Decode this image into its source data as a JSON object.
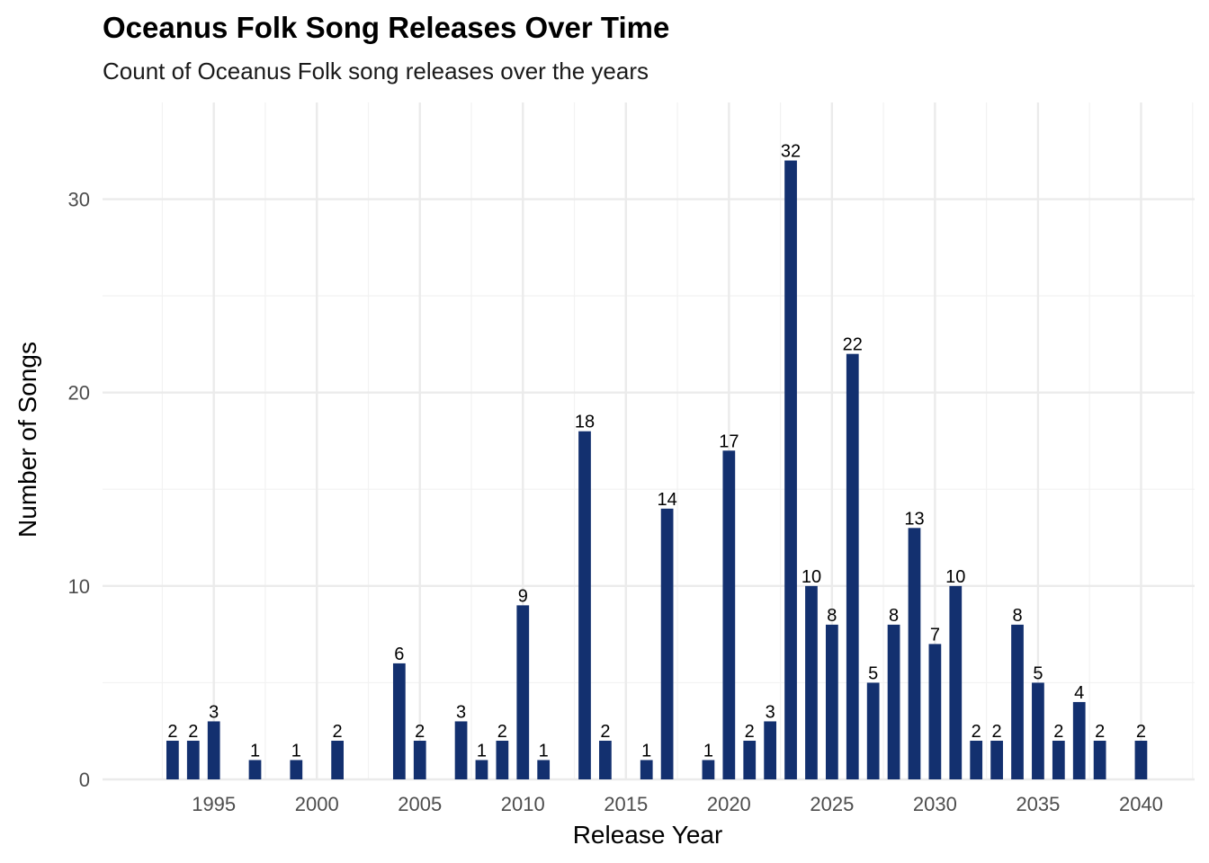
{
  "chart_data": {
    "type": "bar",
    "title": "Oceanus Folk Song Releases Over Time",
    "subtitle": "Count of Oceanus Folk song releases over the years",
    "xlabel": "Release Year",
    "ylabel": "Number of Songs",
    "x": [
      1993,
      1994,
      1995,
      1997,
      1999,
      2001,
      2004,
      2005,
      2007,
      2008,
      2009,
      2010,
      2011,
      2013,
      2014,
      2016,
      2017,
      2019,
      2020,
      2021,
      2022,
      2023,
      2024,
      2025,
      2026,
      2027,
      2028,
      2029,
      2030,
      2031,
      2032,
      2033,
      2034,
      2035,
      2036,
      2037,
      2038,
      2040
    ],
    "values": [
      2,
      2,
      3,
      1,
      1,
      2,
      6,
      2,
      3,
      1,
      2,
      9,
      1,
      18,
      2,
      1,
      14,
      1,
      17,
      2,
      3,
      32,
      10,
      8,
      22,
      5,
      8,
      13,
      7,
      10,
      2,
      2,
      8,
      5,
      2,
      4,
      2,
      2
    ],
    "xlim": [
      1989.6,
      2042.6
    ],
    "ylim": [
      0,
      35
    ],
    "x_ticks": [
      1995,
      2000,
      2005,
      2010,
      2015,
      2020,
      2025,
      2030,
      2035,
      2040
    ],
    "y_ticks": [
      0,
      10,
      20,
      30
    ],
    "bar_color": "#13306F",
    "grid": true,
    "legend": "none"
  }
}
